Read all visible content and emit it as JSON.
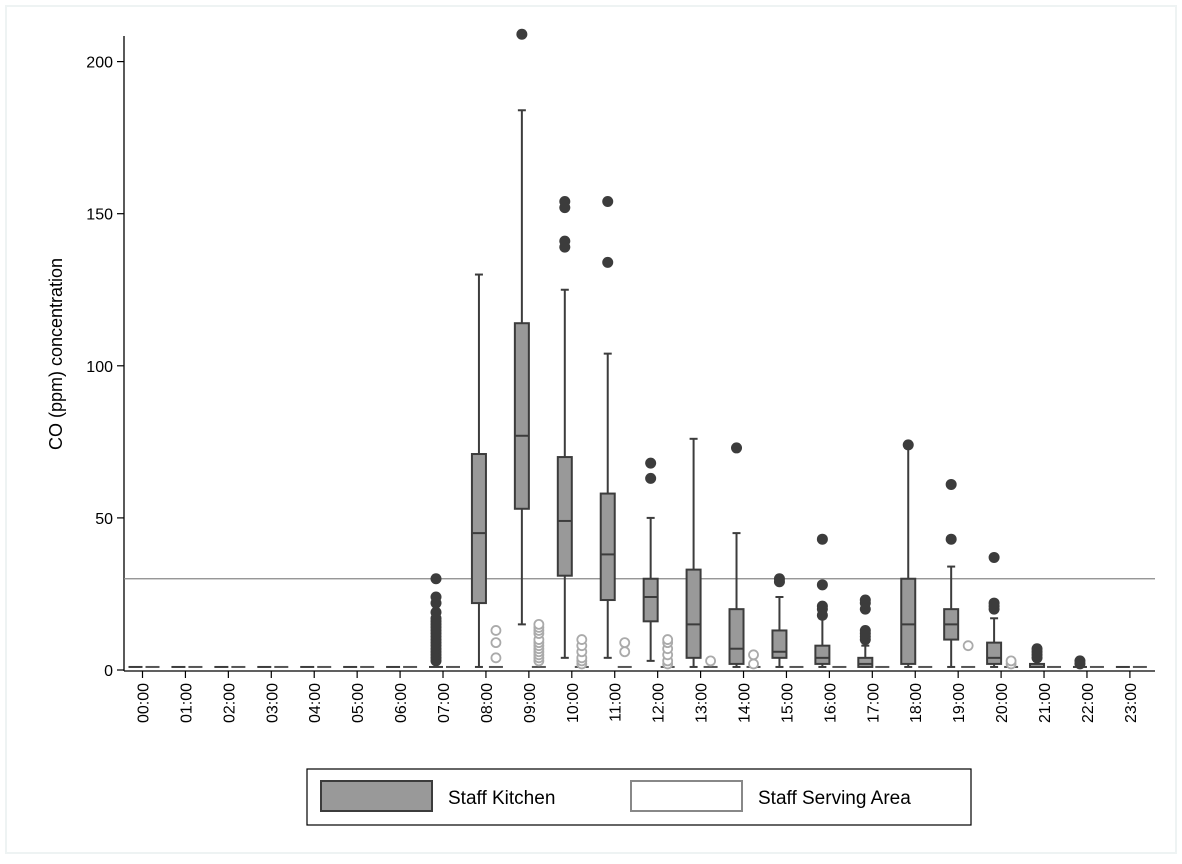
{
  "chart_data": {
    "type": "box",
    "categories": [
      "00:00",
      "01:00",
      "02:00",
      "03:00",
      "04:00",
      "05:00",
      "06:00",
      "07:00",
      "08:00",
      "09:00",
      "10:00",
      "11:00",
      "12:00",
      "13:00",
      "14:00",
      "15:00",
      "16:00",
      "17:00",
      "18:00",
      "19:00",
      "20:00",
      "21:00",
      "22:00",
      "23:00"
    ],
    "ylabel": "CO (ppm) concentration",
    "xlabel": "",
    "ylim": [
      0,
      210
    ],
    "yticks": [
      0,
      50,
      100,
      150,
      200
    ],
    "reference_line": 30,
    "legend_position": "bottom",
    "colors": {
      "kitchen_fill": "#999999",
      "kitchen_stroke": "#3c3c3c",
      "kitchen_outlier": "#3c3c3c",
      "serving_stroke": "#aaaaaa",
      "serving_dash": "#555555",
      "reference": "#888888",
      "axis": "#000000",
      "frame": "#eef3f3"
    },
    "series": [
      {
        "name": "Staff Kitchen",
        "style": "filled",
        "boxes": [
          {
            "cat": "00:00",
            "min": 1,
            "q1": 1,
            "median": 1,
            "q3": 1,
            "max": 1,
            "outliers": []
          },
          {
            "cat": "01:00",
            "min": 1,
            "q1": 1,
            "median": 1,
            "q3": 1,
            "max": 1,
            "outliers": []
          },
          {
            "cat": "02:00",
            "min": 1,
            "q1": 1,
            "median": 1,
            "q3": 1,
            "max": 1,
            "outliers": []
          },
          {
            "cat": "03:00",
            "min": 1,
            "q1": 1,
            "median": 1,
            "q3": 1,
            "max": 1,
            "outliers": []
          },
          {
            "cat": "04:00",
            "min": 1,
            "q1": 1,
            "median": 1,
            "q3": 1,
            "max": 1,
            "outliers": []
          },
          {
            "cat": "05:00",
            "min": 1,
            "q1": 1,
            "median": 1,
            "q3": 1,
            "max": 1,
            "outliers": []
          },
          {
            "cat": "06:00",
            "min": 1,
            "q1": 1,
            "median": 1,
            "q3": 1,
            "max": 1,
            "outliers": []
          },
          {
            "cat": "07:00",
            "min": 1,
            "q1": 1,
            "median": 1,
            "q3": 1,
            "max": 1,
            "outliers": [
              3,
              4,
              5,
              6,
              7,
              8,
              9,
              10,
              11,
              12,
              13,
              14,
              15,
              16,
              17,
              19,
              22,
              24,
              30
            ]
          },
          {
            "cat": "08:00",
            "min": 1,
            "q1": 22,
            "median": 45,
            "q3": 71,
            "max": 130,
            "outliers": []
          },
          {
            "cat": "09:00",
            "min": 15,
            "q1": 53,
            "median": 77,
            "q3": 114,
            "max": 184,
            "outliers": [
              209
            ]
          },
          {
            "cat": "10:00",
            "min": 4,
            "q1": 31,
            "median": 49,
            "q3": 70,
            "max": 125,
            "outliers": [
              139,
              141,
              152,
              154
            ]
          },
          {
            "cat": "11:00",
            "min": 4,
            "q1": 23,
            "median": 38,
            "q3": 58,
            "max": 104,
            "outliers": [
              134,
              154
            ]
          },
          {
            "cat": "12:00",
            "min": 3,
            "q1": 16,
            "median": 24,
            "q3": 30,
            "max": 50,
            "outliers": [
              63,
              68
            ]
          },
          {
            "cat": "13:00",
            "min": 1,
            "q1": 4,
            "median": 15,
            "q3": 33,
            "max": 76,
            "outliers": []
          },
          {
            "cat": "14:00",
            "min": 1,
            "q1": 2,
            "median": 7,
            "q3": 20,
            "max": 45,
            "outliers": [
              73
            ]
          },
          {
            "cat": "15:00",
            "min": 1,
            "q1": 4,
            "median": 6,
            "q3": 13,
            "max": 24,
            "outliers": [
              29,
              30
            ]
          },
          {
            "cat": "16:00",
            "min": 1,
            "q1": 2,
            "median": 4,
            "q3": 8,
            "max": 17,
            "outliers": [
              18,
              20,
              21,
              28,
              43
            ]
          },
          {
            "cat": "17:00",
            "min": 1,
            "q1": 1,
            "median": 2,
            "q3": 4,
            "max": 8,
            "outliers": [
              10,
              11,
              12,
              13,
              20,
              22,
              23
            ]
          },
          {
            "cat": "18:00",
            "min": 1,
            "q1": 2,
            "median": 15,
            "q3": 30,
            "max": 73,
            "outliers": [
              74
            ]
          },
          {
            "cat": "19:00",
            "min": 1,
            "q1": 10,
            "median": 15,
            "q3": 20,
            "max": 34,
            "outliers": [
              43,
              61
            ]
          },
          {
            "cat": "20:00",
            "min": 1,
            "q1": 2,
            "median": 4,
            "q3": 9,
            "max": 17,
            "outliers": [
              20,
              21,
              22,
              37
            ]
          },
          {
            "cat": "21:00",
            "min": 1,
            "q1": 1,
            "median": 1,
            "q3": 2,
            "max": 3,
            "outliers": [
              4,
              5,
              6,
              7
            ]
          },
          {
            "cat": "22:00",
            "min": 1,
            "q1": 1,
            "median": 1,
            "q3": 1,
            "max": 1,
            "outliers": [
              2,
              3
            ]
          },
          {
            "cat": "23:00",
            "min": 1,
            "q1": 1,
            "median": 1,
            "q3": 1,
            "max": 1,
            "outliers": []
          }
        ]
      },
      {
        "name": "Staff Serving Area",
        "style": "outline",
        "boxes": [
          {
            "cat": "00:00",
            "min": 1,
            "q1": 1,
            "median": 1,
            "q3": 1,
            "max": 1,
            "outliers": []
          },
          {
            "cat": "01:00",
            "min": 1,
            "q1": 1,
            "median": 1,
            "q3": 1,
            "max": 1,
            "outliers": []
          },
          {
            "cat": "02:00",
            "min": 1,
            "q1": 1,
            "median": 1,
            "q3": 1,
            "max": 1,
            "outliers": []
          },
          {
            "cat": "03:00",
            "min": 1,
            "q1": 1,
            "median": 1,
            "q3": 1,
            "max": 1,
            "outliers": []
          },
          {
            "cat": "04:00",
            "min": 1,
            "q1": 1,
            "median": 1,
            "q3": 1,
            "max": 1,
            "outliers": []
          },
          {
            "cat": "05:00",
            "min": 1,
            "q1": 1,
            "median": 1,
            "q3": 1,
            "max": 1,
            "outliers": []
          },
          {
            "cat": "06:00",
            "min": 1,
            "q1": 1,
            "median": 1,
            "q3": 1,
            "max": 1,
            "outliers": []
          },
          {
            "cat": "07:00",
            "min": 1,
            "q1": 1,
            "median": 1,
            "q3": 1,
            "max": 1,
            "outliers": []
          },
          {
            "cat": "08:00",
            "min": 1,
            "q1": 1,
            "median": 1,
            "q3": 1,
            "max": 1,
            "outliers": [
              4,
              9,
              13
            ]
          },
          {
            "cat": "09:00",
            "min": 1,
            "q1": 1,
            "median": 1,
            "q3": 1,
            "max": 1,
            "outliers": [
              3,
              4,
              5,
              6,
              7,
              8,
              9,
              10,
              12,
              13,
              14,
              15
            ]
          },
          {
            "cat": "10:00",
            "min": 1,
            "q1": 1,
            "median": 1,
            "q3": 1,
            "max": 1,
            "outliers": [
              2,
              3,
              4,
              6,
              8,
              10
            ]
          },
          {
            "cat": "11:00",
            "min": 1,
            "q1": 1,
            "median": 1,
            "q3": 1,
            "max": 1,
            "outliers": [
              6,
              9
            ]
          },
          {
            "cat": "12:00",
            "min": 1,
            "q1": 1,
            "median": 1,
            "q3": 1,
            "max": 1,
            "outliers": [
              2,
              3,
              5,
              7,
              9,
              10
            ]
          },
          {
            "cat": "13:00",
            "min": 1,
            "q1": 1,
            "median": 1,
            "q3": 1,
            "max": 1,
            "outliers": [
              3
            ]
          },
          {
            "cat": "14:00",
            "min": 1,
            "q1": 1,
            "median": 1,
            "q3": 1,
            "max": 1,
            "outliers": [
              2,
              5
            ]
          },
          {
            "cat": "15:00",
            "min": 1,
            "q1": 1,
            "median": 1,
            "q3": 1,
            "max": 1,
            "outliers": []
          },
          {
            "cat": "16:00",
            "min": 1,
            "q1": 1,
            "median": 1,
            "q3": 1,
            "max": 1,
            "outliers": []
          },
          {
            "cat": "17:00",
            "min": 1,
            "q1": 1,
            "median": 1,
            "q3": 1,
            "max": 1,
            "outliers": []
          },
          {
            "cat": "18:00",
            "min": 1,
            "q1": 1,
            "median": 1,
            "q3": 1,
            "max": 1,
            "outliers": []
          },
          {
            "cat": "19:00",
            "min": 1,
            "q1": 1,
            "median": 1,
            "q3": 1,
            "max": 1,
            "outliers": [
              8
            ]
          },
          {
            "cat": "20:00",
            "min": 1,
            "q1": 1,
            "median": 1,
            "q3": 1,
            "max": 1,
            "outliers": [
              2,
              3
            ]
          },
          {
            "cat": "21:00",
            "min": 1,
            "q1": 1,
            "median": 1,
            "q3": 1,
            "max": 1,
            "outliers": []
          },
          {
            "cat": "22:00",
            "min": 1,
            "q1": 1,
            "median": 1,
            "q3": 1,
            "max": 1,
            "outliers": []
          },
          {
            "cat": "23:00",
            "min": 1,
            "q1": 1,
            "median": 1,
            "q3": 1,
            "max": 1,
            "outliers": []
          }
        ]
      }
    ]
  }
}
